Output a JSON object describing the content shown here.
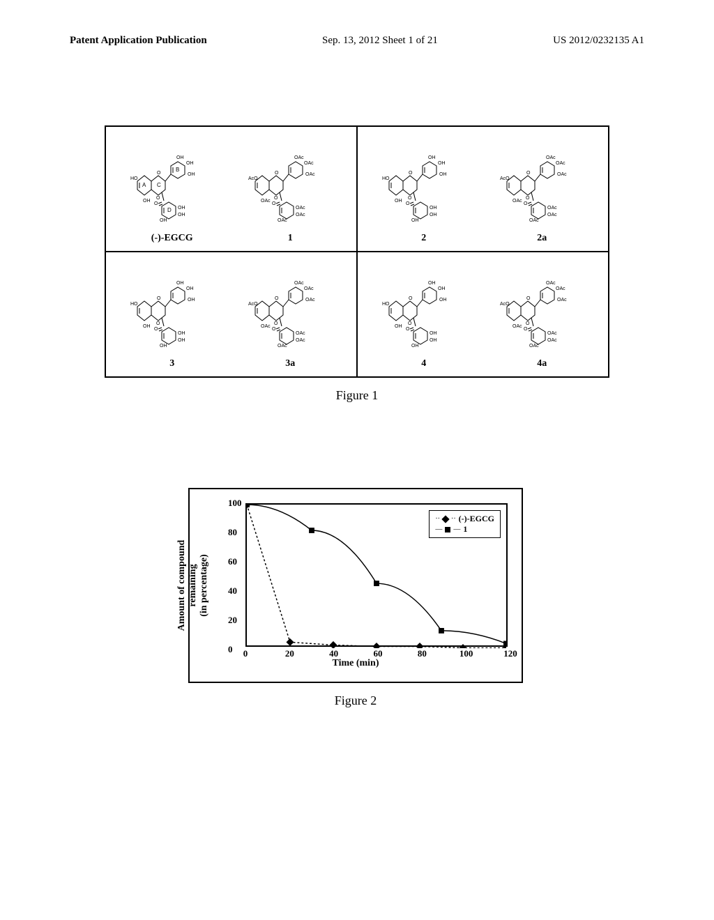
{
  "header": {
    "left": "Patent Application Publication",
    "center": "Sep. 13, 2012  Sheet 1 of 21",
    "right": "US 2012/0232135 A1"
  },
  "figure1": {
    "caption": "Figure 1",
    "cells": [
      {
        "compounds": [
          {
            "label": "(-)-EGCG",
            "rings": [
              "A",
              "B",
              "C",
              "D"
            ],
            "subst": "OH"
          },
          {
            "label": "1",
            "subst": "OAc"
          }
        ]
      },
      {
        "compounds": [
          {
            "label": "2",
            "subst": "OH"
          },
          {
            "label": "2a",
            "subst": "OAc"
          }
        ]
      },
      {
        "compounds": [
          {
            "label": "3",
            "subst": "OH"
          },
          {
            "label": "3a",
            "subst": "OAc"
          }
        ]
      },
      {
        "compounds": [
          {
            "label": "4",
            "subst": "OH"
          },
          {
            "label": "4a",
            "subst": "OAc"
          }
        ]
      }
    ]
  },
  "figure2": {
    "caption": "Figure 2",
    "type": "line",
    "x_label": "Time (min)",
    "y_label": "Amount of compound\nremaining\n(in percentage)",
    "xlim": [
      0,
      120
    ],
    "ylim": [
      0,
      100
    ],
    "x_ticks": [
      0,
      20,
      40,
      60,
      80,
      100,
      120
    ],
    "y_ticks": [
      0,
      20,
      40,
      60,
      80,
      100
    ],
    "background_color": "#ffffff",
    "border_color": "#000000",
    "series": [
      {
        "name": "(-)-EGCG",
        "marker": "diamond",
        "color": "#000000",
        "line_style": "dashed",
        "data": [
          [
            0,
            100
          ],
          [
            20,
            4
          ],
          [
            40,
            2
          ],
          [
            60,
            1
          ],
          [
            80,
            1
          ],
          [
            100,
            0
          ],
          [
            120,
            0
          ]
        ]
      },
      {
        "name": "1",
        "marker": "square",
        "color": "#000000",
        "line_style": "solid",
        "data": [
          [
            0,
            100
          ],
          [
            30,
            82
          ],
          [
            60,
            45
          ],
          [
            90,
            12
          ],
          [
            120,
            3
          ]
        ]
      }
    ],
    "legend_position": "top-right",
    "title_fontsize": 18,
    "label_fontsize": 14,
    "tick_fontsize": 13
  }
}
